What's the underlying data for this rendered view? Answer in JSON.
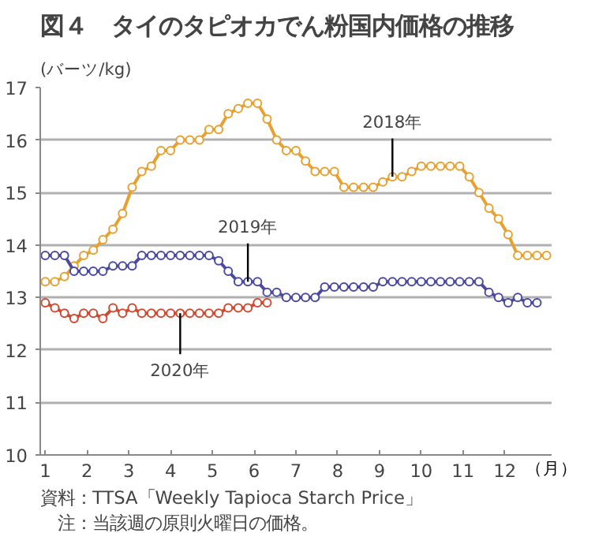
{
  "chart_data": {
    "type": "line",
    "title": "図４　タイのタピオカでん粉国内価格の推移",
    "ylabel": "(バーツ/kg)",
    "xlabel": "（月）",
    "xlim": [
      0.88,
      13.12
    ],
    "ylim": [
      10,
      17
    ],
    "yticks": [
      10,
      11,
      12,
      13,
      14,
      15,
      16,
      17
    ],
    "xticks": [
      1,
      2,
      3,
      4,
      5,
      6,
      7,
      8,
      9,
      10,
      11,
      12
    ],
    "grid": "y",
    "marker": "circle",
    "line_style": "solid",
    "x": [
      1.0,
      1.23,
      1.46,
      1.69,
      1.92,
      2.15,
      2.38,
      2.62,
      2.85,
      3.08,
      3.31,
      3.54,
      3.77,
      4.0,
      4.23,
      4.46,
      4.69,
      4.92,
      5.15,
      5.38,
      5.62,
      5.85,
      6.08,
      6.31,
      6.54,
      6.77,
      7.0,
      7.23,
      7.46,
      7.69,
      7.92,
      8.15,
      8.38,
      8.62,
      8.85,
      9.08,
      9.31,
      9.54,
      9.77,
      10.0,
      10.23,
      10.46,
      10.69,
      10.92,
      11.15,
      11.38,
      11.62,
      11.85,
      12.08,
      12.31,
      12.54,
      12.77,
      13.0
    ],
    "series": [
      {
        "color": "#e8a030",
        "values": [
          13.3,
          13.3,
          13.4,
          13.6,
          13.8,
          13.9,
          14.1,
          14.3,
          14.6,
          15.1,
          15.4,
          15.5,
          15.8,
          15.8,
          16.0,
          16.0,
          16.0,
          16.2,
          16.2,
          16.5,
          16.6,
          16.7,
          16.7,
          16.4,
          16.0,
          15.8,
          15.8,
          15.6,
          15.4,
          15.4,
          15.4,
          15.1,
          15.1,
          15.1,
          15.1,
          15.2,
          15.3,
          15.3,
          15.4,
          15.5,
          15.5,
          15.5,
          15.5,
          15.5,
          15.3,
          15.0,
          14.7,
          14.5,
          14.2,
          13.8,
          13.8,
          13.8,
          13.8
        ]
      },
      {
        "color": "#4a4aa0",
        "values": [
          13.8,
          13.8,
          13.8,
          13.5,
          13.5,
          13.5,
          13.5,
          13.6,
          13.6,
          13.6,
          13.8,
          13.8,
          13.8,
          13.8,
          13.8,
          13.8,
          13.8,
          13.8,
          13.7,
          13.5,
          13.3,
          13.3,
          13.3,
          13.1,
          13.1,
          13.0,
          13.0,
          13.0,
          13.0,
          13.2,
          13.2,
          13.2,
          13.2,
          13.2,
          13.2,
          13.3,
          13.3,
          13.3,
          13.3,
          13.3,
          13.3,
          13.3,
          13.3,
          13.3,
          13.3,
          13.3,
          13.1,
          13.0,
          12.9,
          13.0,
          12.9,
          12.9,
          null
        ]
      },
      {
        "color": "#d04a30",
        "values": [
          12.9,
          12.8,
          12.7,
          12.6,
          12.7,
          12.7,
          12.6,
          12.8,
          12.7,
          12.8,
          12.7,
          12.7,
          12.7,
          12.7,
          12.7,
          12.7,
          12.7,
          12.7,
          12.7,
          12.8,
          12.8,
          12.8,
          12.9,
          12.9,
          null,
          null,
          null,
          null,
          null,
          null,
          null,
          null,
          null,
          null,
          null,
          null,
          null,
          null,
          null,
          null,
          null,
          null,
          null,
          null,
          null,
          null,
          null,
          null,
          null,
          null,
          null,
          null,
          null
        ]
      }
    ],
    "annotations": [
      {
        "text": "2018年",
        "x": 9.31,
        "y": 15.3
      },
      {
        "text": "2019年",
        "x": 5.85,
        "y": 13.3
      },
      {
        "text": "2020年",
        "x": 4.23,
        "y": 12.7
      },
      "資料：TTSA「Weekly Tapioca Starch Price」",
      "　注：当該週の原則火曜日の価格。"
    ]
  }
}
